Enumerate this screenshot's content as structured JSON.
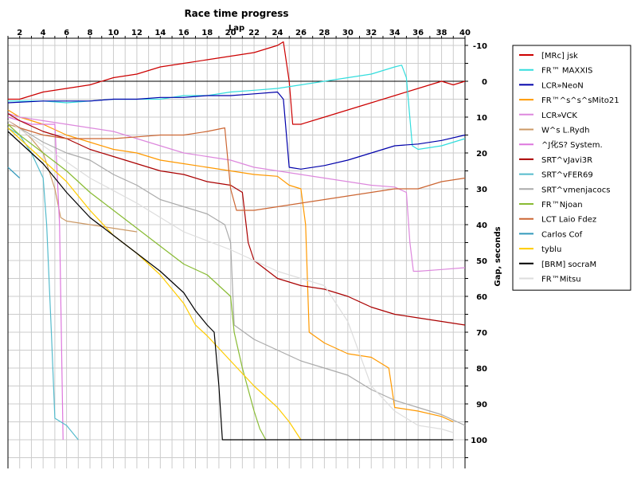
{
  "chart_data": {
    "type": "line",
    "title": "Race time progress",
    "xlabel": "Lap",
    "ylabel": "Gap, seconds",
    "xlim": [
      1,
      40
    ],
    "ylim": [
      -12,
      108
    ],
    "y_axis_side": "right",
    "y_axis_inverted": true,
    "x_axis_position": "top",
    "grid": true,
    "legend_position": "right",
    "x_ticks": [
      "2",
      "4",
      "6",
      "8",
      "10",
      "12",
      "14",
      "16",
      "18",
      "20",
      "22",
      "24",
      "26",
      "28",
      "30",
      "32",
      "34",
      "36",
      "38",
      "40"
    ],
    "y_ticks": [
      "-10",
      "0",
      "10",
      "20",
      "30",
      "40",
      "50",
      "60",
      "70",
      "80",
      "90",
      "100"
    ],
    "x_tick_values": [
      2,
      4,
      6,
      8,
      10,
      12,
      14,
      16,
      18,
      20,
      22,
      24,
      26,
      28,
      30,
      32,
      34,
      36,
      38,
      40
    ],
    "y_tick_values": [
      -10,
      0,
      10,
      20,
      30,
      40,
      50,
      60,
      70,
      80,
      90,
      100
    ],
    "series": [
      {
        "name": "[MRc] jsk",
        "color": "#cc0000",
        "points": [
          [
            1,
            5
          ],
          [
            2,
            5
          ],
          [
            4,
            3
          ],
          [
            6,
            2
          ],
          [
            8,
            1
          ],
          [
            10,
            -1
          ],
          [
            12,
            -2
          ],
          [
            14,
            -4
          ],
          [
            16,
            -5
          ],
          [
            18,
            -6
          ],
          [
            20,
            -7
          ],
          [
            22,
            -8
          ],
          [
            24,
            -10
          ],
          [
            24.5,
            -11
          ],
          [
            25,
            0
          ],
          [
            25.3,
            12
          ],
          [
            26,
            12
          ],
          [
            28,
            10
          ],
          [
            30,
            8
          ],
          [
            32,
            6
          ],
          [
            34,
            4
          ],
          [
            36,
            2
          ],
          [
            38,
            0
          ],
          [
            39,
            1
          ],
          [
            40,
            0
          ]
        ]
      },
      {
        "name": "FR™ MAXXIS",
        "color": "#33dddd",
        "points": [
          [
            1,
            5.5
          ],
          [
            4,
            5.5
          ],
          [
            6,
            6
          ],
          [
            8,
            5.5
          ],
          [
            10,
            5
          ],
          [
            12,
            5
          ],
          [
            14,
            5
          ],
          [
            16,
            4
          ],
          [
            18,
            4
          ],
          [
            20,
            3
          ],
          [
            22,
            2.5
          ],
          [
            24,
            2
          ],
          [
            26,
            1
          ],
          [
            28,
            0
          ],
          [
            30,
            -1
          ],
          [
            32,
            -2
          ],
          [
            34,
            -4
          ],
          [
            34.6,
            -4.5
          ],
          [
            35,
            -1
          ],
          [
            35.5,
            18
          ],
          [
            36,
            19
          ],
          [
            38,
            18
          ],
          [
            40,
            16
          ]
        ]
      },
      {
        "name": "LCR»NeoN",
        "color": "#0000aa",
        "points": [
          [
            1,
            6
          ],
          [
            4,
            5.5
          ],
          [
            6,
            5.5
          ],
          [
            8,
            5.5
          ],
          [
            10,
            5
          ],
          [
            12,
            5
          ],
          [
            14,
            4.5
          ],
          [
            16,
            4.5
          ],
          [
            18,
            4
          ],
          [
            20,
            4
          ],
          [
            22,
            3.5
          ],
          [
            24,
            3
          ],
          [
            24.5,
            5
          ],
          [
            25,
            24
          ],
          [
            26,
            24.5
          ],
          [
            28,
            23.5
          ],
          [
            30,
            22
          ],
          [
            32,
            20
          ],
          [
            34,
            18
          ],
          [
            36,
            17.5
          ],
          [
            38,
            16.5
          ],
          [
            40,
            15
          ]
        ]
      },
      {
        "name": "FR™^s^s^sMito21",
        "color": "#ff9900",
        "points": [
          [
            1,
            8
          ],
          [
            2,
            10
          ],
          [
            4,
            12
          ],
          [
            6,
            15
          ],
          [
            8,
            17
          ],
          [
            10,
            19
          ],
          [
            12,
            20
          ],
          [
            14,
            22
          ],
          [
            16,
            23
          ],
          [
            18,
            24
          ],
          [
            20,
            25
          ],
          [
            22,
            26
          ],
          [
            24,
            26.5
          ],
          [
            25,
            29
          ],
          [
            26,
            30
          ],
          [
            26.4,
            40
          ],
          [
            26.7,
            70
          ],
          [
            28,
            73
          ],
          [
            30,
            76
          ],
          [
            32,
            77
          ],
          [
            33.5,
            80
          ],
          [
            34,
            91
          ],
          [
            36,
            92
          ],
          [
            38,
            93.5
          ],
          [
            39,
            95
          ]
        ]
      },
      {
        "name": "LCR»VCK",
        "color": "#dd88dd",
        "points": [
          [
            1,
            9
          ],
          [
            2,
            10
          ],
          [
            4,
            11
          ],
          [
            6,
            12
          ],
          [
            8,
            13
          ],
          [
            10,
            14
          ],
          [
            12,
            16
          ],
          [
            14,
            18
          ],
          [
            16,
            20
          ],
          [
            18,
            21
          ],
          [
            20,
            22
          ],
          [
            22,
            24
          ],
          [
            24,
            25
          ],
          [
            26,
            26
          ],
          [
            28,
            27
          ],
          [
            30,
            28
          ],
          [
            32,
            29
          ],
          [
            34,
            29.5
          ],
          [
            35,
            31
          ],
          [
            35.3,
            45
          ],
          [
            35.6,
            53
          ],
          [
            36,
            53
          ],
          [
            38,
            52.5
          ],
          [
            40,
            52
          ]
        ]
      },
      {
        "name": "W^s L.Rydh",
        "color": "#cc9966",
        "points": [
          [
            1,
            12
          ],
          [
            2,
            13
          ],
          [
            3,
            16
          ],
          [
            4,
            20
          ],
          [
            5,
            30
          ],
          [
            5.5,
            38
          ],
          [
            6,
            39
          ],
          [
            8,
            40
          ],
          [
            10,
            41
          ],
          [
            12,
            42
          ]
        ]
      },
      {
        "name": "^J化S? System.",
        "color": "#dd77dd",
        "points": [
          [
            1,
            10
          ],
          [
            2,
            11
          ],
          [
            3,
            12
          ],
          [
            4,
            12
          ],
          [
            5,
            12
          ],
          [
            5.4,
            40
          ],
          [
            5.7,
            100
          ]
        ]
      },
      {
        "name": "SRT^vJavi3R",
        "color": "#aa0000",
        "points": [
          [
            1,
            9
          ],
          [
            2,
            11
          ],
          [
            4,
            14
          ],
          [
            6,
            16
          ],
          [
            8,
            19
          ],
          [
            10,
            21
          ],
          [
            12,
            23
          ],
          [
            14,
            25
          ],
          [
            16,
            26
          ],
          [
            18,
            28
          ],
          [
            20,
            29
          ],
          [
            21,
            31
          ],
          [
            21.5,
            45
          ],
          [
            22,
            50
          ],
          [
            24,
            55
          ],
          [
            26,
            57
          ],
          [
            28,
            58
          ],
          [
            30,
            60
          ],
          [
            32,
            63
          ],
          [
            34,
            65
          ],
          [
            36,
            66
          ],
          [
            38,
            67
          ],
          [
            40,
            68
          ]
        ]
      },
      {
        "name": "SRT^vFER69",
        "color": "#55bbcc",
        "points": [
          [
            1,
            13
          ],
          [
            2,
            15
          ],
          [
            3,
            20
          ],
          [
            4,
            27
          ],
          [
            4.3,
            40
          ],
          [
            4.7,
            70
          ],
          [
            5,
            94
          ],
          [
            6,
            96
          ],
          [
            7,
            100
          ]
        ]
      },
      {
        "name": "SRT^vmenjacocs",
        "color": "#aaaaaa",
        "points": [
          [
            1,
            11
          ],
          [
            2,
            13
          ],
          [
            4,
            17
          ],
          [
            6,
            20
          ],
          [
            8,
            22
          ],
          [
            10,
            26
          ],
          [
            12,
            29
          ],
          [
            14,
            33
          ],
          [
            16,
            35
          ],
          [
            18,
            37
          ],
          [
            19.5,
            40
          ],
          [
            20,
            45
          ],
          [
            20.3,
            68
          ],
          [
            22,
            72
          ],
          [
            24,
            75
          ],
          [
            26,
            78
          ],
          [
            28,
            80
          ],
          [
            30,
            82
          ],
          [
            32,
            86
          ],
          [
            34,
            89
          ],
          [
            36,
            91
          ],
          [
            38,
            93
          ],
          [
            40,
            96
          ]
        ]
      },
      {
        "name": "FR™Njoan",
        "color": "#88bb33",
        "points": [
          [
            1,
            12
          ],
          [
            2,
            15
          ],
          [
            4,
            20
          ],
          [
            6,
            25
          ],
          [
            8,
            31
          ],
          [
            10,
            36
          ],
          [
            12,
            41
          ],
          [
            14,
            46
          ],
          [
            16,
            51
          ],
          [
            18,
            54
          ],
          [
            19,
            57
          ],
          [
            20,
            60
          ],
          [
            20.3,
            70
          ],
          [
            21,
            80
          ],
          [
            22,
            92
          ],
          [
            22.5,
            97
          ],
          [
            23,
            100
          ]
        ]
      },
      {
        "name": "LCT Laio Fdez",
        "color": "#cc6633",
        "points": [
          [
            1,
            11
          ],
          [
            2,
            13
          ],
          [
            4,
            15
          ],
          [
            6,
            16
          ],
          [
            8,
            16
          ],
          [
            10,
            16
          ],
          [
            12,
            15.5
          ],
          [
            14,
            15
          ],
          [
            16,
            15
          ],
          [
            18,
            14
          ],
          [
            19.5,
            13
          ],
          [
            20,
            30
          ],
          [
            20.5,
            36
          ],
          [
            22,
            36
          ],
          [
            24,
            35
          ],
          [
            26,
            34
          ],
          [
            28,
            33
          ],
          [
            30,
            32
          ],
          [
            32,
            31
          ],
          [
            34,
            30
          ],
          [
            36,
            30
          ],
          [
            38,
            28
          ],
          [
            40,
            27
          ]
        ]
      },
      {
        "name": "Carlos Cof",
        "color": "#3399bb",
        "points": [
          [
            1,
            24
          ],
          [
            2,
            27
          ]
        ]
      },
      {
        "name": "tyblu",
        "color": "#ffcc00",
        "points": [
          [
            1,
            13
          ],
          [
            2,
            16
          ],
          [
            4,
            22
          ],
          [
            6,
            28
          ],
          [
            8,
            36
          ],
          [
            10,
            43
          ],
          [
            12,
            48
          ],
          [
            14,
            54
          ],
          [
            15,
            58
          ],
          [
            16,
            62
          ],
          [
            17,
            68
          ],
          [
            18,
            71
          ],
          [
            20,
            78
          ],
          [
            22,
            85
          ],
          [
            24,
            91
          ],
          [
            25,
            95
          ],
          [
            26,
            100
          ]
        ]
      },
      {
        "name": "[BRM] socraM",
        "color": "#000000",
        "points": [
          [
            1,
            14
          ],
          [
            2,
            17
          ],
          [
            4,
            23
          ],
          [
            6,
            31
          ],
          [
            8,
            38
          ],
          [
            10,
            43
          ],
          [
            12,
            48
          ],
          [
            14,
            53
          ],
          [
            16,
            59
          ],
          [
            17,
            64
          ],
          [
            18,
            68
          ],
          [
            18.6,
            70
          ],
          [
            19,
            85
          ],
          [
            19.3,
            100
          ],
          [
            20,
            100
          ],
          [
            24,
            100
          ],
          [
            28,
            100
          ],
          [
            32,
            100
          ],
          [
            36,
            100
          ],
          [
            39,
            100
          ]
        ]
      },
      {
        "name": "FR™Mitsu",
        "color": "#dddddd",
        "points": [
          [
            1,
            11
          ],
          [
            4,
            18
          ],
          [
            8,
            27
          ],
          [
            12,
            34
          ],
          [
            16,
            42
          ],
          [
            20,
            47
          ],
          [
            24,
            53
          ],
          [
            28,
            57
          ],
          [
            30,
            67
          ],
          [
            32,
            85
          ],
          [
            34,
            92
          ],
          [
            36,
            96
          ],
          [
            38,
            97
          ],
          [
            39,
            98
          ]
        ]
      }
    ]
  }
}
